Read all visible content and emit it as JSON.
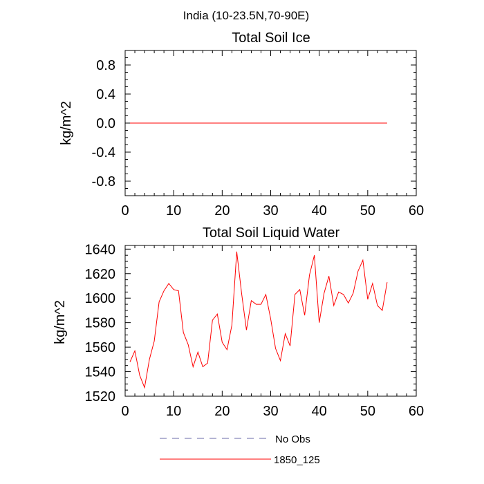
{
  "figure": {
    "suptitle": "India (10-23.5N,70-90E)"
  },
  "chart_data": [
    {
      "type": "line",
      "title": "Total Soil Ice",
      "xlabel": "",
      "ylabel": "kg/m^2",
      "xlim": [
        0,
        60
      ],
      "ylim": [
        -1.0,
        1.0
      ],
      "xticks": [
        0,
        10,
        20,
        30,
        40,
        50,
        60
      ],
      "yticks": [
        -0.8,
        -0.4,
        0.0,
        0.4,
        0.8
      ],
      "ytick_labels": [
        "-0.8",
        "-0.4",
        "0.0",
        "0.4",
        "0.8"
      ],
      "series": [
        {
          "name": "1850_125",
          "color": "#ff0000",
          "x": [
            1,
            54
          ],
          "y": [
            0.0,
            0.0
          ]
        }
      ]
    },
    {
      "type": "line",
      "title": "Total Soil Liquid Water",
      "xlabel": "",
      "ylabel": "kg/m^2",
      "xlim": [
        0,
        60
      ],
      "ylim": [
        1520,
        1643
      ],
      "xticks": [
        0,
        10,
        20,
        30,
        40,
        50,
        60
      ],
      "yticks": [
        1520,
        1540,
        1560,
        1580,
        1600,
        1620,
        1640
      ],
      "ytick_labels": [
        "1520",
        "1540",
        "1560",
        "1580",
        "1600",
        "1620",
        "1640"
      ],
      "series": [
        {
          "name": "1850_125",
          "color": "#ff0000",
          "x": [
            1,
            2,
            3,
            4,
            5,
            6,
            7,
            8,
            9,
            10,
            11,
            12,
            13,
            14,
            15,
            16,
            17,
            18,
            19,
            20,
            21,
            22,
            23,
            24,
            25,
            26,
            27,
            28,
            29,
            30,
            31,
            32,
            33,
            34,
            35,
            36,
            37,
            38,
            39,
            40,
            41,
            42,
            43,
            44,
            45,
            46,
            47,
            48,
            49,
            50,
            51,
            52,
            53,
            54
          ],
          "y": [
            1548,
            1557,
            1537,
            1527,
            1550,
            1565,
            1597,
            1606,
            1612,
            1607,
            1606,
            1572,
            1562,
            1544,
            1556,
            1544,
            1547,
            1582,
            1587,
            1564,
            1558,
            1578,
            1638,
            1604,
            1574,
            1598,
            1595,
            1595,
            1603,
            1583,
            1559,
            1549,
            1571,
            1561,
            1603,
            1607,
            1586,
            1619,
            1635,
            1580,
            1604,
            1618,
            1594,
            1605,
            1603,
            1596,
            1604,
            1622,
            1631,
            1599,
            1612,
            1594,
            1590,
            1613
          ]
        }
      ]
    }
  ],
  "legend": {
    "items": [
      {
        "label": "No Obs",
        "color": "#6a6aaa",
        "style": "dashed"
      },
      {
        "label": "1850_125",
        "color": "#ff0000",
        "style": "solid"
      }
    ]
  }
}
